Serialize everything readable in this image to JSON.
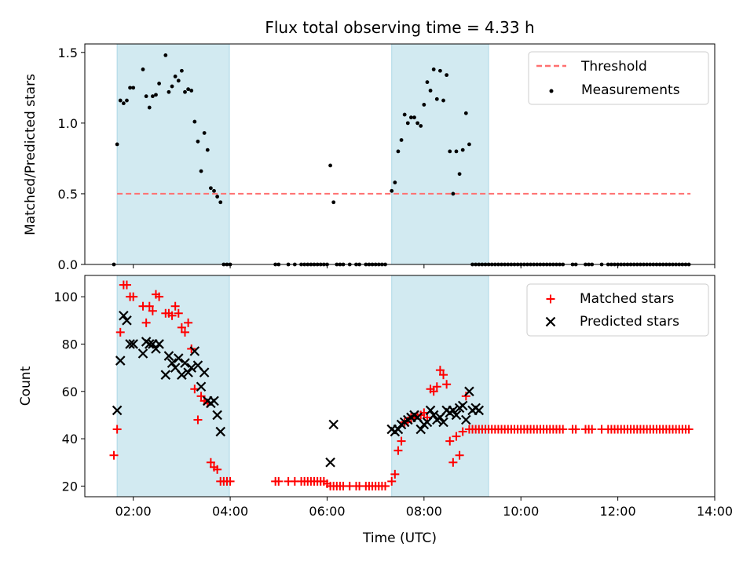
{
  "colors": {
    "shade": "#add8e6",
    "threshold": "#ff7070",
    "measurement": "#000000",
    "matched": "#ff0000",
    "predicted": "#000000"
  },
  "chart_data": [
    {
      "type": "scatter",
      "title": "Flux total observing time = 4.33 h",
      "xlabel": "",
      "ylabel": "Matched/Predicted stars",
      "xlim": [
        "01:00",
        "14:00"
      ],
      "ylim": [
        0,
        1.56
      ],
      "yticks": [
        "0.0",
        "0.5",
        "1.0",
        "1.5"
      ],
      "grid": false,
      "legend_position": "top-right",
      "shaded_intervals": [
        [
          "01:40",
          "03:59"
        ],
        [
          "07:20",
          "09:20"
        ]
      ],
      "threshold": {
        "name": "Threshold",
        "y": 0.5,
        "x_range": [
          "01:40",
          "13:30"
        ]
      },
      "series": [
        {
          "name": "Measurements",
          "marker": "dot",
          "x": [
            "01:36",
            "01:40",
            "01:44",
            "01:48",
            "01:52",
            "01:56",
            "02:00",
            "02:04",
            "02:12",
            "02:16",
            "02:20",
            "02:24",
            "02:28",
            "02:32",
            "02:40",
            "02:44",
            "02:48",
            "02:52",
            "02:56",
            "03:00",
            "03:04",
            "03:08",
            "03:12",
            "03:16",
            "03:20",
            "03:24",
            "03:28",
            "03:32",
            "03:36",
            "03:40",
            "03:44",
            "03:48",
            "03:52",
            "03:56",
            "04:00",
            "04:04",
            "04:08",
            "04:12",
            "04:16",
            "04:20",
            "04:56",
            "05:00",
            "05:12",
            "05:20",
            "05:28",
            "05:32",
            "05:36",
            "05:40",
            "05:44",
            "05:48",
            "05:52",
            "05:56",
            "06:00",
            "06:04",
            "06:08",
            "06:12",
            "06:16",
            "06:20",
            "06:24",
            "06:28",
            "06:36",
            "06:40",
            "06:48",
            "06:52",
            "06:56",
            "07:00",
            "07:04",
            "07:08",
            "07:12",
            "07:16",
            "07:20",
            "07:24",
            "07:28",
            "07:32",
            "07:36",
            "07:40",
            "07:44",
            "07:48",
            "07:52",
            "07:56",
            "08:00",
            "08:04",
            "08:08",
            "08:12",
            "08:16",
            "08:20",
            "08:24",
            "08:28",
            "08:32",
            "08:36",
            "08:40",
            "08:44",
            "08:48",
            "08:52",
            "08:56",
            "09:00",
            "09:04",
            "09:08",
            "09:12",
            "09:16",
            "09:20",
            "09:24",
            "09:28",
            "09:32",
            "09:36",
            "09:40",
            "09:44",
            "09:48",
            "09:52",
            "09:56",
            "10:00",
            "10:04",
            "10:08",
            "10:12",
            "10:16",
            "10:20",
            "10:24",
            "10:28",
            "10:32",
            "10:36",
            "10:40",
            "10:44",
            "10:48",
            "10:52",
            "11:04",
            "11:08",
            "11:20",
            "11:24",
            "11:28",
            "11:40",
            "11:48",
            "11:52",
            "11:56",
            "12:00",
            "12:04",
            "12:08",
            "12:12",
            "12:16",
            "12:20",
            "12:24",
            "12:28",
            "12:32",
            "12:36",
            "12:40",
            "12:44",
            "12:48",
            "12:52",
            "12:56",
            "13:00",
            "13:04",
            "13:08",
            "13:12",
            "13:16",
            "13:20",
            "13:24",
            "13:28"
          ],
          "y": [
            0.0,
            0.85,
            1.16,
            1.14,
            1.16,
            1.25,
            1.25,
            null,
            1.38,
            1.19,
            1.11,
            1.19,
            1.2,
            1.28,
            1.48,
            1.22,
            1.26,
            1.33,
            1.3,
            1.37,
            1.22,
            1.24,
            1.23,
            1.01,
            0.87,
            0.66,
            0.93,
            0.81,
            0.54,
            0.52,
            0.48,
            0.44,
            0.0,
            0.0,
            0.0,
            null,
            null,
            null,
            null,
            null,
            0.0,
            0.0,
            0.0,
            0.0,
            0.0,
            0.0,
            0.0,
            0.0,
            0.0,
            0.0,
            0.0,
            0.0,
            0.0,
            0.7,
            0.44,
            0.0,
            0.0,
            0.0,
            null,
            0.0,
            0.0,
            0.0,
            0.0,
            0.0,
            0.0,
            0.0,
            0.0,
            0.0,
            0.0,
            null,
            0.52,
            0.58,
            0.8,
            0.88,
            1.06,
            1.0,
            1.04,
            1.04,
            1.0,
            0.98,
            1.13,
            1.29,
            1.23,
            1.38,
            1.17,
            1.37,
            1.16,
            1.34,
            0.8,
            0.5,
            0.8,
            0.64,
            0.81,
            1.07,
            0.85,
            0.0,
            0.0,
            0.0,
            0.0,
            0.0,
            0.0,
            0.0,
            0.0,
            0.0,
            0.0,
            0.0,
            0.0,
            0.0,
            0.0,
            0.0,
            0.0,
            0.0,
            0.0,
            0.0,
            0.0,
            0.0,
            0.0,
            0.0,
            0.0,
            0.0,
            0.0,
            0.0,
            0.0,
            0.0,
            0.0,
            0.0,
            0.0,
            0.0,
            0.0,
            0.0,
            0.0,
            0.0,
            0.0,
            0.0,
            0.0,
            0.0,
            0.0,
            0.0,
            0.0,
            0.0,
            0.0,
            0.0,
            0.0,
            0.0,
            0.0,
            0.0,
            0.0,
            0.0,
            0.0,
            0.0,
            0.0,
            0.0,
            0.0,
            0.0,
            0.0,
            0.0
          ]
        }
      ]
    },
    {
      "type": "scatter",
      "title": "",
      "xlabel": "Time (UTC)",
      "ylabel": "Count",
      "xlim": [
        "01:00",
        "14:00"
      ],
      "ylim": [
        15.5,
        109
      ],
      "xticks": [
        "02:00",
        "04:00",
        "06:00",
        "08:00",
        "10:00",
        "12:00",
        "14:00"
      ],
      "yticks": [
        "20",
        "40",
        "60",
        "80",
        "100"
      ],
      "grid": false,
      "legend_position": "top-right",
      "shaded_intervals": [
        [
          "01:40",
          "03:59"
        ],
        [
          "07:20",
          "09:20"
        ]
      ],
      "series": [
        {
          "name": "Matched stars",
          "marker": "plus",
          "x": [
            "01:36",
            "01:40",
            "01:44",
            "01:48",
            "01:52",
            "01:56",
            "02:00",
            "02:04",
            "02:12",
            "02:16",
            "02:20",
            "02:24",
            "02:28",
            "02:32",
            "02:40",
            "02:44",
            "02:48",
            "02:52",
            "02:56",
            "03:00",
            "03:04",
            "03:08",
            "03:12",
            "03:16",
            "03:20",
            "03:24",
            "03:28",
            "03:32",
            "03:36",
            "03:40",
            "03:44",
            "03:48",
            "03:52",
            "03:56",
            "04:00",
            "04:04",
            "04:08",
            "04:12",
            "04:16",
            "04:20",
            "04:56",
            "05:00",
            "05:12",
            "05:20",
            "05:28",
            "05:32",
            "05:36",
            "05:40",
            "05:44",
            "05:48",
            "05:52",
            "05:56",
            "06:00",
            "06:04",
            "06:08",
            "06:12",
            "06:16",
            "06:20",
            "06:24",
            "06:28",
            "06:36",
            "06:40",
            "06:48",
            "06:52",
            "06:56",
            "07:00",
            "07:04",
            "07:08",
            "07:12",
            "07:16",
            "07:20",
            "07:24",
            "07:28",
            "07:32",
            "07:36",
            "07:40",
            "07:44",
            "07:48",
            "07:52",
            "07:56",
            "08:00",
            "08:04",
            "08:08",
            "08:12",
            "08:16",
            "08:20",
            "08:24",
            "08:28",
            "08:32",
            "08:36",
            "08:40",
            "08:44",
            "08:48",
            "08:52",
            "08:56",
            "09:00",
            "09:04",
            "09:08",
            "09:12",
            "09:16",
            "09:20",
            "09:24",
            "09:28",
            "09:32",
            "09:36",
            "09:40",
            "09:44",
            "09:48",
            "09:52",
            "09:56",
            "10:00",
            "10:04",
            "10:08",
            "10:12",
            "10:16",
            "10:20",
            "10:24",
            "10:28",
            "10:32",
            "10:36",
            "10:40",
            "10:44",
            "10:48",
            "10:52",
            "11:04",
            "11:08",
            "11:20",
            "11:24",
            "11:28",
            "11:40",
            "11:48",
            "11:52",
            "11:56",
            "12:00",
            "12:04",
            "12:08",
            "12:12",
            "12:16",
            "12:20",
            "12:24",
            "12:28",
            "12:32",
            "12:36",
            "12:40",
            "12:44",
            "12:48",
            "12:52",
            "12:56",
            "13:00",
            "13:04",
            "13:08",
            "13:12",
            "13:16",
            "13:20",
            "13:24",
            "13:28"
          ],
          "y": [
            33,
            44,
            85,
            105,
            105,
            100,
            100,
            null,
            96,
            89,
            96,
            94,
            101,
            100,
            93,
            93,
            92,
            96,
            93,
            87,
            85,
            89,
            78,
            61,
            48,
            58,
            56,
            55,
            30,
            28,
            27,
            22,
            22,
            22,
            22,
            null,
            null,
            null,
            null,
            null,
            22,
            22,
            22,
            22,
            22,
            22,
            22,
            22,
            22,
            22,
            22,
            22,
            21,
            20,
            20,
            20,
            20,
            20,
            null,
            20,
            20,
            20,
            20,
            20,
            20,
            20,
            20,
            20,
            20,
            null,
            22,
            25,
            35,
            39,
            47,
            47,
            49,
            49,
            50,
            50,
            51,
            49,
            61,
            60,
            62,
            69,
            67,
            63,
            39,
            30,
            41,
            33,
            43,
            58,
            44,
            44,
            44,
            44,
            44,
            44,
            44,
            44,
            44,
            44,
            44,
            44,
            44,
            44,
            44,
            44,
            44,
            44,
            44,
            44,
            44,
            44,
            44,
            44,
            44,
            44,
            44,
            44,
            44,
            44,
            44,
            44,
            44,
            44,
            44,
            44,
            44,
            44,
            44,
            44,
            44,
            44,
            44,
            44,
            44,
            44,
            44,
            44,
            44,
            44,
            44,
            44,
            44,
            44,
            44,
            44,
            44,
            44,
            44,
            44,
            44,
            44
          ]
        },
        {
          "name": "Predicted stars",
          "marker": "x",
          "x": [
            "01:40",
            "01:44",
            "01:48",
            "01:52",
            "01:56",
            "02:00",
            "02:12",
            "02:16",
            "02:20",
            "02:24",
            "02:28",
            "02:32",
            "02:40",
            "02:44",
            "02:48",
            "02:52",
            "02:56",
            "03:00",
            "03:04",
            "03:08",
            "03:12",
            "03:16",
            "03:20",
            "03:24",
            "03:28",
            "03:32",
            "03:36",
            "03:40",
            "03:44",
            "03:48",
            "06:04",
            "06:08",
            "07:20",
            "07:24",
            "07:28",
            "07:32",
            "07:36",
            "07:40",
            "07:44",
            "07:48",
            "07:52",
            "07:56",
            "08:00",
            "08:04",
            "08:08",
            "08:12",
            "08:16",
            "08:20",
            "08:24",
            "08:28",
            "08:32",
            "08:36",
            "08:40",
            "08:44",
            "08:48",
            "08:52",
            "08:56",
            "09:00",
            "09:04",
            "09:08"
          ],
          "y": [
            52,
            73,
            92,
            90,
            80,
            80,
            76,
            81,
            80,
            80,
            78,
            80,
            67,
            75,
            72,
            70,
            74,
            67,
            72,
            68,
            70,
            77,
            71,
            62,
            68,
            56,
            55,
            56,
            50,
            43,
            30,
            46,
            44,
            43,
            44,
            46,
            47,
            48,
            49,
            50,
            49,
            44,
            46,
            47,
            52,
            50,
            48,
            49,
            47,
            52,
            51,
            52,
            50,
            53,
            54,
            48,
            60,
            52,
            53,
            52
          ]
        }
      ]
    }
  ]
}
